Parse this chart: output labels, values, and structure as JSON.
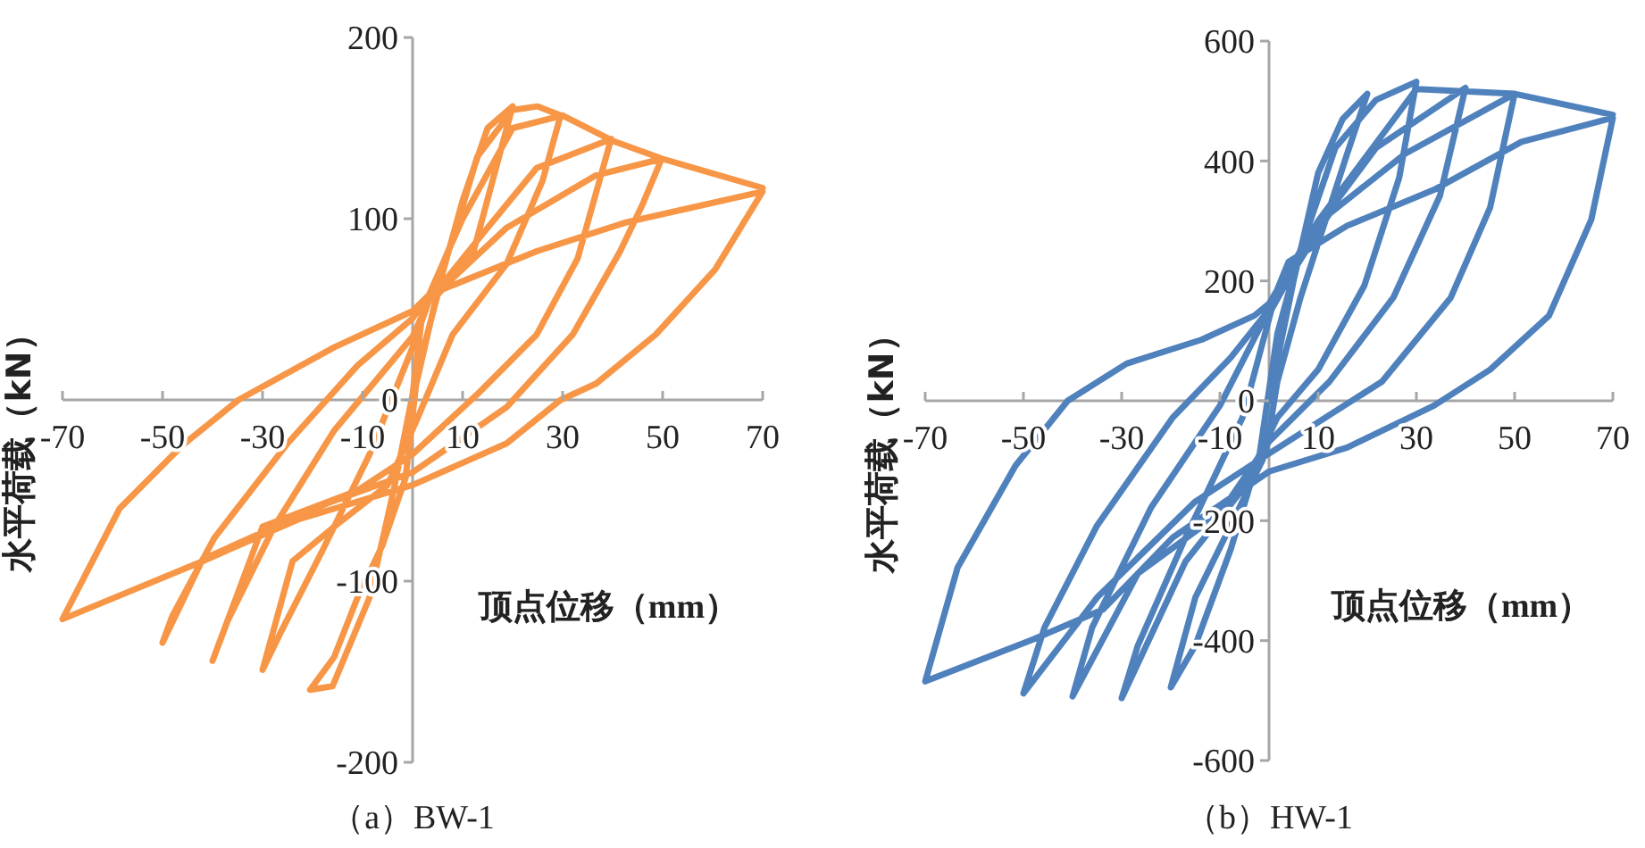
{
  "chart_data": [
    {
      "type": "line",
      "title": "（a）BW-1",
      "xlabel": "顶点位移（mm）",
      "ylabel": "水平荷载（kN）",
      "xlim": [
        -70,
        70
      ],
      "ylim": [
        -200,
        200
      ],
      "xticks": [
        -70,
        -50,
        -30,
        -10,
        10,
        30,
        50,
        70
      ],
      "yticks": [
        -200,
        -100,
        0,
        100,
        200
      ],
      "series": [
        {
          "color": "#f79646",
          "x": [
            0,
            5,
            10,
            15,
            20,
            12,
            5,
            1,
            -1.4,
            -6,
            -11,
            -15.7,
            -20.5,
            -16,
            -8.6,
            -3.8,
            0,
            2,
            8,
            12.9,
            20,
            25,
            29.6,
            26,
            18.8,
            8,
            1,
            -5,
            -15.7,
            -24,
            -30,
            -26.5,
            -18,
            -8.6,
            0,
            3.3,
            15,
            24.8,
            39.7,
            33,
            24.8,
            12.9,
            0,
            -11,
            -30,
            -40,
            -37,
            -27.7,
            -15.7,
            0,
            3.3,
            18.8,
            36.7,
            49.8,
            46,
            41.5,
            32,
            18.8,
            0,
            -17,
            -42,
            -50,
            -48,
            -39.6,
            -25,
            -11,
            0,
            3.3,
            24.8,
            42.7,
            70,
            60.5,
            48.6,
            36.7,
            29.6,
            18.8,
            0,
            -22.9,
            -42,
            -70,
            -58.6,
            -46,
            -34.8,
            -15.7,
            0,
            3.3,
            10,
            20,
            30,
            40,
            50,
            70
          ],
          "values": [
            0,
            60,
            110,
            150,
            162,
            80,
            58,
            16,
            -43,
            -80,
            -109,
            -142,
            -160,
            -158,
            -109,
            -50,
            3,
            49,
            88,
            134,
            160,
            162,
            157,
            121,
            75,
            36,
            -10,
            -47,
            -70,
            -89,
            -149,
            -129,
            -83,
            -30,
            29,
            55,
            95,
            128,
            144,
            78,
            36,
            3,
            -30,
            -50,
            -70,
            -144,
            -122,
            -70,
            -17,
            35,
            55,
            95,
            124,
            133,
            108,
            82,
            36,
            -4,
            -40,
            -57,
            -88,
            -134,
            -119,
            -76,
            -24,
            19,
            45,
            58,
            82,
            98,
            115,
            72,
            36,
            9,
            0,
            -24,
            -47,
            -66,
            -89,
            -121,
            -60,
            -25,
            0,
            29,
            49,
            58,
            100,
            150,
            157,
            143,
            133,
            117
          ]
        }
      ]
    },
    {
      "type": "line",
      "title": "（b）HW-1",
      "xlabel": "顶点位移（mm）",
      "ylabel": "水平荷载（kN）",
      "xlim": [
        -70,
        70
      ],
      "ylim": [
        -600,
        600
      ],
      "xticks": [
        -70,
        -50,
        -30,
        -10,
        10,
        30,
        50,
        70
      ],
      "yticks": [
        -600,
        -400,
        -200,
        0,
        200,
        400,
        600
      ],
      "series": [
        {
          "color": "#4f81bd",
          "x": [
            0,
            5,
            10,
            15,
            20,
            15.9,
            6.4,
            1.7,
            -0.7,
            -7.8,
            -15,
            -20,
            -15,
            -7.8,
            -1.9,
            1.7,
            6.4,
            13.5,
            21.8,
            30,
            26.5,
            19.4,
            10,
            1.7,
            -5.4,
            -17,
            -30,
            -26.7,
            -17,
            -5.4,
            0.5,
            10,
            21.8,
            40,
            34.8,
            25.3,
            12.3,
            0,
            -10,
            -26.7,
            -40,
            -36,
            -24,
            -10,
            0,
            12.3,
            27.7,
            50,
            45,
            37,
            23,
            0,
            -15,
            -35,
            -50,
            -45.7,
            -35,
            -19.6,
            -7.8,
            0,
            4,
            15.9,
            33.6,
            51.4,
            70,
            65.6,
            57,
            45,
            33.6,
            15.9,
            0,
            -19.6,
            -33.8,
            -48,
            -70,
            -63.4,
            -51.6,
            -41,
            -29,
            -13.7,
            -3,
            0,
            10,
            30,
            50,
            70
          ],
          "values": [
            0,
            200,
            380,
            470,
            512,
            412,
            172,
            32,
            -88,
            -208,
            -328,
            -478,
            -408,
            -248,
            -88,
            112,
            252,
            422,
            502,
            532,
            372,
            192,
            52,
            -28,
            -148,
            -268,
            -496,
            -408,
            -228,
            -28,
            152,
            292,
            422,
            522,
            342,
            172,
            32,
            -68,
            -188,
            -288,
            -493,
            -378,
            -178,
            -8,
            152,
            312,
            412,
            512,
            322,
            172,
            32,
            -88,
            -168,
            -328,
            -488,
            -378,
            -208,
            -28,
            72,
            152,
            232,
            292,
            352,
            432,
            472,
            302,
            142,
            52,
            -8,
            -78,
            -118,
            -228,
            -348,
            -398,
            -468,
            -278,
            -108,
            0,
            62,
            102,
            142,
            162,
            300,
            520,
            512,
            477
          ]
        }
      ]
    }
  ]
}
